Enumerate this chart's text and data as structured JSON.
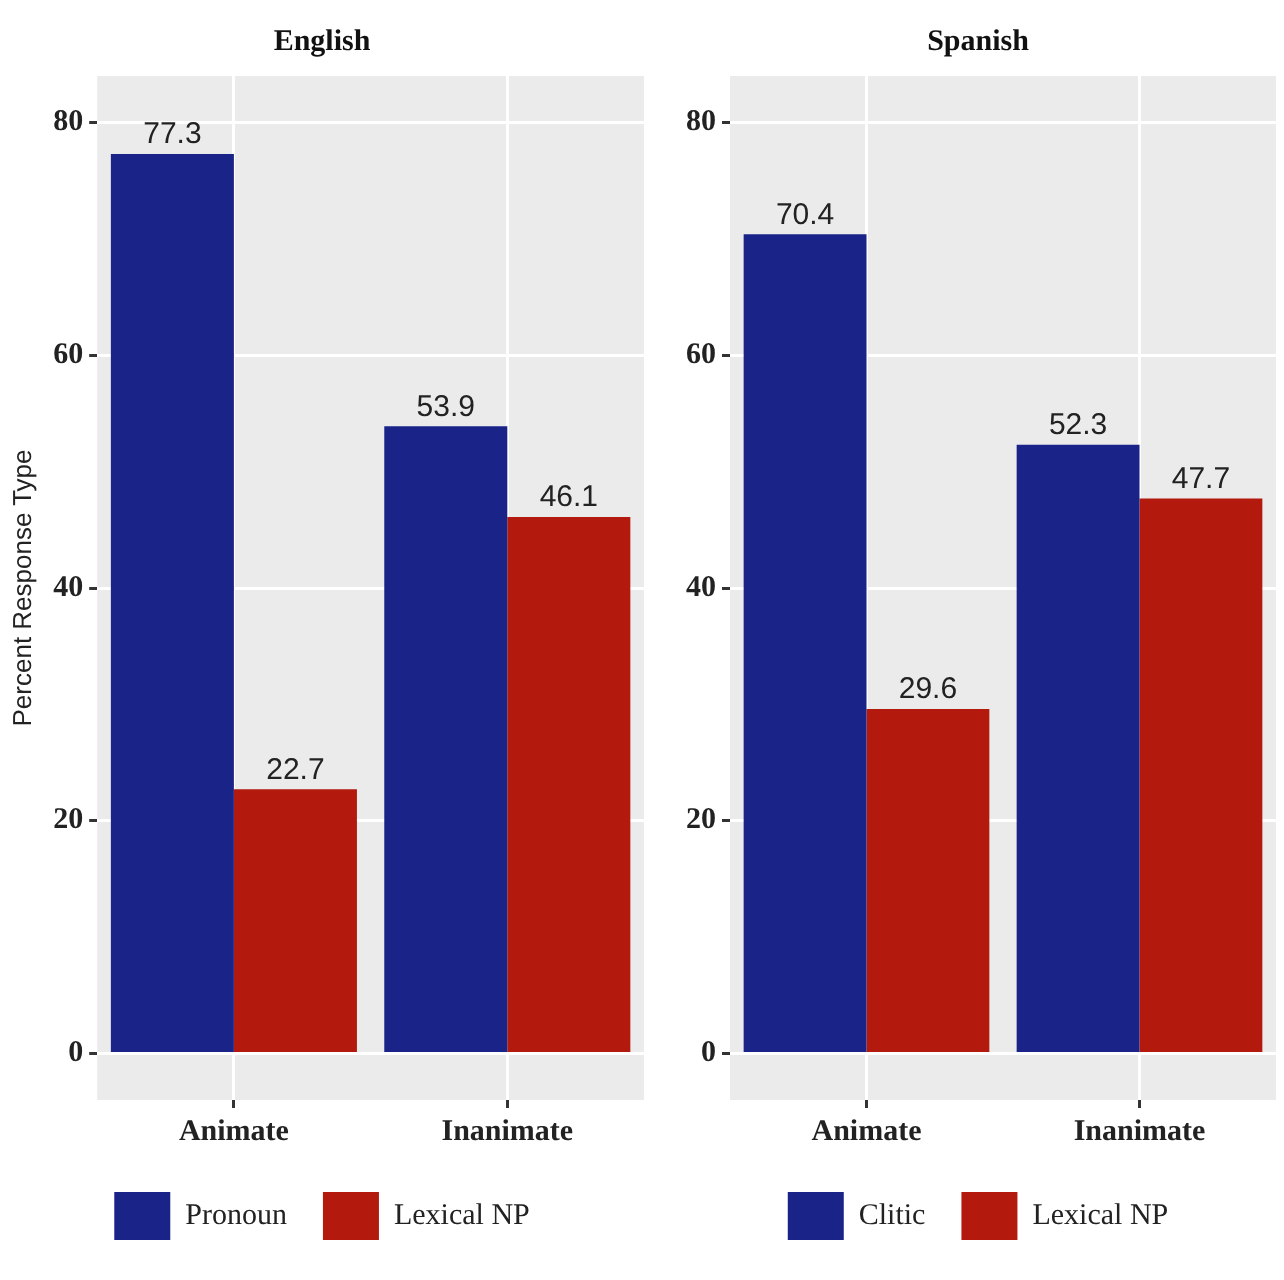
{
  "chart_data": [
    {
      "type": "bar",
      "title": "English",
      "ylabel": "Percent Response Type",
      "categories": [
        "Animate",
        "Inanimate"
      ],
      "series": [
        {
          "name": "Pronoun",
          "color": "#1a2388",
          "values": [
            77.3,
            53.9
          ]
        },
        {
          "name": "Lexical NP",
          "color": "#b3190d",
          "values": [
            22.7,
            46.1
          ]
        }
      ],
      "ylim": [
        -4,
        84
      ],
      "yticks": [
        0,
        20,
        40,
        60,
        80
      ],
      "grid": true,
      "legend": "bottom",
      "data_labels": true
    },
    {
      "type": "bar",
      "title": "Spanish",
      "categories": [
        "Animate",
        "Inanimate"
      ],
      "series": [
        {
          "name": "Clitic",
          "color": "#1a2388",
          "values": [
            70.4,
            52.3
          ]
        },
        {
          "name": "Lexical NP",
          "color": "#b3190d",
          "values": [
            29.6,
            47.7
          ]
        }
      ],
      "ylim": [
        -4,
        84
      ],
      "yticks": [
        0,
        20,
        40,
        60,
        80
      ],
      "grid": true,
      "legend": "bottom",
      "data_labels": true
    }
  ]
}
